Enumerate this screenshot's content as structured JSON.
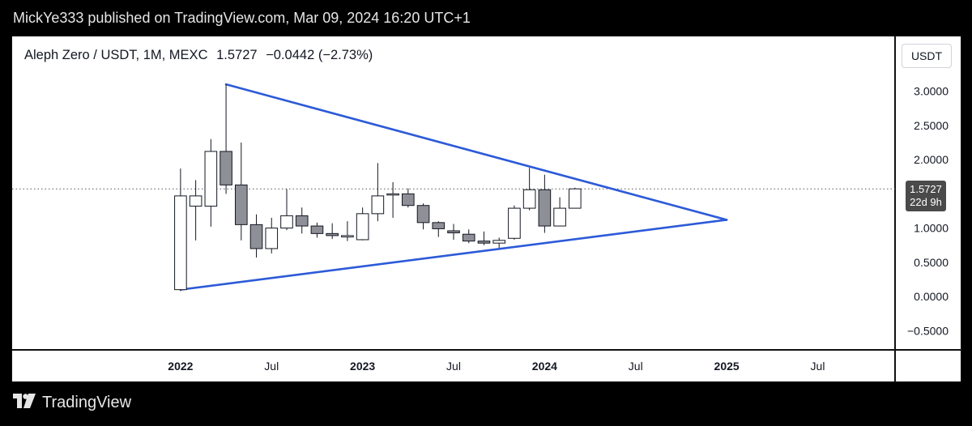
{
  "header": {
    "published_text": "MickYe333 published on TradingView.com, Mar 09, 2024 16:20 UTC+1"
  },
  "title": {
    "pair": "Aleph Zero / USDT, 1M, MEXC",
    "price": "1.5727",
    "change": "−0.0442 (−2.73%)"
  },
  "scale": {
    "unit_label": "USDT",
    "current_price": "1.5727",
    "countdown": "22d 9h"
  },
  "footer": {
    "brand": "TradingView"
  },
  "colors": {
    "up_fill": "#ffffff",
    "down_fill": "#8f8f98",
    "candle_outline": "#131722",
    "trendline": "#2c5ad8",
    "price_tag": "#4a4a4a"
  },
  "chart_data": {
    "type": "candlestick",
    "interval": "1M",
    "y_ticks": [
      "3.0000",
      "2.5000",
      "2.0000",
      "1.0000",
      "0.5000",
      "0.0000",
      "−0.5000"
    ],
    "ylim": [
      -0.78,
      3.8
    ],
    "x_ticks": [
      {
        "t": 0,
        "label": "2022",
        "bold": true
      },
      {
        "t": 6,
        "label": "Jul",
        "bold": false
      },
      {
        "t": 12,
        "label": "2023",
        "bold": true
      },
      {
        "t": 18,
        "label": "Jul",
        "bold": false
      },
      {
        "t": 24,
        "label": "2024",
        "bold": true
      },
      {
        "t": 30,
        "label": "Jul",
        "bold": false
      },
      {
        "t": 36,
        "label": "2025",
        "bold": true
      },
      {
        "t": 42,
        "label": "Jul",
        "bold": false
      }
    ],
    "x_time_range": [
      -11.1,
      47.1
    ],
    "candles": [
      {
        "t": 0,
        "o": 0.1,
        "h": 1.87,
        "l": 0.08,
        "c": 1.47
      },
      {
        "t": 1,
        "o": 1.32,
        "h": 1.7,
        "l": 0.82,
        "c": 1.47
      },
      {
        "t": 2,
        "o": 1.32,
        "h": 2.3,
        "l": 1.02,
        "c": 2.12
      },
      {
        "t": 3,
        "o": 2.12,
        "h": 3.1,
        "l": 1.5,
        "c": 1.63
      },
      {
        "t": 4,
        "o": 1.63,
        "h": 2.25,
        "l": 0.82,
        "c": 1.05
      },
      {
        "t": 5,
        "o": 1.05,
        "h": 1.2,
        "l": 0.57,
        "c": 0.7
      },
      {
        "t": 6,
        "o": 0.7,
        "h": 1.15,
        "l": 0.63,
        "c": 1.0
      },
      {
        "t": 7,
        "o": 1.0,
        "h": 1.57,
        "l": 0.97,
        "c": 1.18
      },
      {
        "t": 8,
        "o": 1.18,
        "h": 1.3,
        "l": 0.92,
        "c": 1.03
      },
      {
        "t": 9,
        "o": 1.03,
        "h": 1.08,
        "l": 0.86,
        "c": 0.92
      },
      {
        "t": 10,
        "o": 0.92,
        "h": 1.07,
        "l": 0.84,
        "c": 0.89
      },
      {
        "t": 11,
        "o": 0.87,
        "h": 1.1,
        "l": 0.81,
        "c": 0.89
      },
      {
        "t": 12,
        "o": 0.83,
        "h": 1.3,
        "l": 0.82,
        "c": 1.21
      },
      {
        "t": 13,
        "o": 1.21,
        "h": 1.95,
        "l": 1.1,
        "c": 1.47
      },
      {
        "t": 14,
        "o": 1.5,
        "h": 1.67,
        "l": 1.15,
        "c": 1.5
      },
      {
        "t": 15,
        "o": 1.5,
        "h": 1.58,
        "l": 1.3,
        "c": 1.33
      },
      {
        "t": 16,
        "o": 1.33,
        "h": 1.36,
        "l": 0.98,
        "c": 1.08
      },
      {
        "t": 17,
        "o": 1.08,
        "h": 1.1,
        "l": 0.87,
        "c": 0.99
      },
      {
        "t": 18,
        "o": 0.96,
        "h": 1.06,
        "l": 0.83,
        "c": 0.93
      },
      {
        "t": 19,
        "o": 0.91,
        "h": 0.98,
        "l": 0.78,
        "c": 0.81
      },
      {
        "t": 20,
        "o": 0.81,
        "h": 0.95,
        "l": 0.75,
        "c": 0.78
      },
      {
        "t": 21,
        "o": 0.78,
        "h": 0.86,
        "l": 0.71,
        "c": 0.82
      },
      {
        "t": 22,
        "o": 0.85,
        "h": 1.33,
        "l": 0.83,
        "c": 1.29
      },
      {
        "t": 23,
        "o": 1.29,
        "h": 1.88,
        "l": 1.26,
        "c": 1.56
      },
      {
        "t": 24,
        "o": 1.56,
        "h": 1.78,
        "l": 0.93,
        "c": 1.03
      },
      {
        "t": 25,
        "o": 1.03,
        "h": 1.45,
        "l": 1.03,
        "c": 1.29
      },
      {
        "t": 26,
        "o": 1.29,
        "h": 1.59,
        "l": 1.29,
        "c": 1.5727
      }
    ],
    "trendlines": [
      {
        "from": {
          "t": 3,
          "p": 3.1
        },
        "to": {
          "t": 36,
          "p": 1.12
        }
      },
      {
        "from": {
          "t": 0,
          "p": 0.1
        },
        "to": {
          "t": 36,
          "p": 1.12
        }
      }
    ],
    "price_line": 1.5727
  }
}
